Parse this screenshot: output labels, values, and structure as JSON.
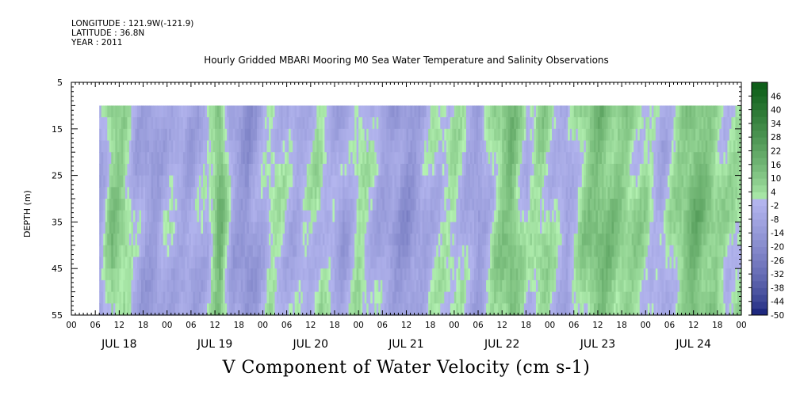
{
  "meta": {
    "longitude": "LONGITUDE : 121.9W(-121.9)",
    "latitude": "LATITUDE : 36.8N",
    "year": "YEAR : 2011"
  },
  "chart_data": {
    "type": "heatmap",
    "title": "Hourly Gridded MBARI Mooring M0 Sea Water Temperature and Salinity Observations",
    "xlabel": "V Component of Water Velocity (cm s-1)",
    "ylabel": "DEPTH (m)",
    "x_days": [
      "JUL 18",
      "JUL 19",
      "JUL 20",
      "JUL 21",
      "JUL 22",
      "JUL 23",
      "JUL 24"
    ],
    "x_hour_ticks": [
      "00",
      "06",
      "12",
      "18"
    ],
    "x_range_hours": [
      0,
      168
    ],
    "data_start_hour": 7,
    "y_ticks": [
      5,
      15,
      25,
      35,
      45,
      55
    ],
    "ylim": [
      55,
      5
    ],
    "data_depth_range": [
      10,
      55
    ],
    "colorbar_levels": [
      46,
      40,
      34,
      28,
      22,
      16,
      10,
      4,
      -2,
      -8,
      -14,
      -20,
      -26,
      -32,
      -38,
      -44,
      -50
    ],
    "colorbar_range": [
      -50,
      52
    ],
    "colorbar_step": 3,
    "colors": {
      "low": "#0a1670",
      "mid_low": "#b3b5ee",
      "mid_high": "#b5f2b3",
      "high": "#0a5a15"
    },
    "velocity_profile_cm_s": [
      {
        "hour": 7,
        "v": -8
      },
      {
        "hour": 10,
        "v": 10
      },
      {
        "hour": 13,
        "v": 6
      },
      {
        "hour": 16,
        "v": -6
      },
      {
        "hour": 20,
        "v": -12
      },
      {
        "hour": 24,
        "v": -4
      },
      {
        "hour": 30,
        "v": -8
      },
      {
        "hour": 34,
        "v": -3
      },
      {
        "hour": 37,
        "v": 16
      },
      {
        "hour": 40,
        "v": -8
      },
      {
        "hour": 44,
        "v": -16
      },
      {
        "hour": 50,
        "v": 2
      },
      {
        "hour": 56,
        "v": -6
      },
      {
        "hour": 62,
        "v": 2
      },
      {
        "hour": 68,
        "v": -10
      },
      {
        "hour": 72,
        "v": 3
      },
      {
        "hour": 78,
        "v": -8
      },
      {
        "hour": 84,
        "v": -16
      },
      {
        "hour": 90,
        "v": -3
      },
      {
        "hour": 96,
        "v": 2
      },
      {
        "hour": 102,
        "v": -12
      },
      {
        "hour": 106,
        "v": 4
      },
      {
        "hour": 110,
        "v": 14
      },
      {
        "hour": 114,
        "v": -2
      },
      {
        "hour": 118,
        "v": 6
      },
      {
        "hour": 124,
        "v": -8
      },
      {
        "hour": 128,
        "v": 6
      },
      {
        "hour": 132,
        "v": 14
      },
      {
        "hour": 138,
        "v": 8
      },
      {
        "hour": 144,
        "v": 3
      },
      {
        "hour": 148,
        "v": -6
      },
      {
        "hour": 152,
        "v": 6
      },
      {
        "hour": 156,
        "v": 16
      },
      {
        "hour": 160,
        "v": 10
      },
      {
        "hour": 164,
        "v": 2
      },
      {
        "hour": 168,
        "v": 4
      }
    ]
  }
}
